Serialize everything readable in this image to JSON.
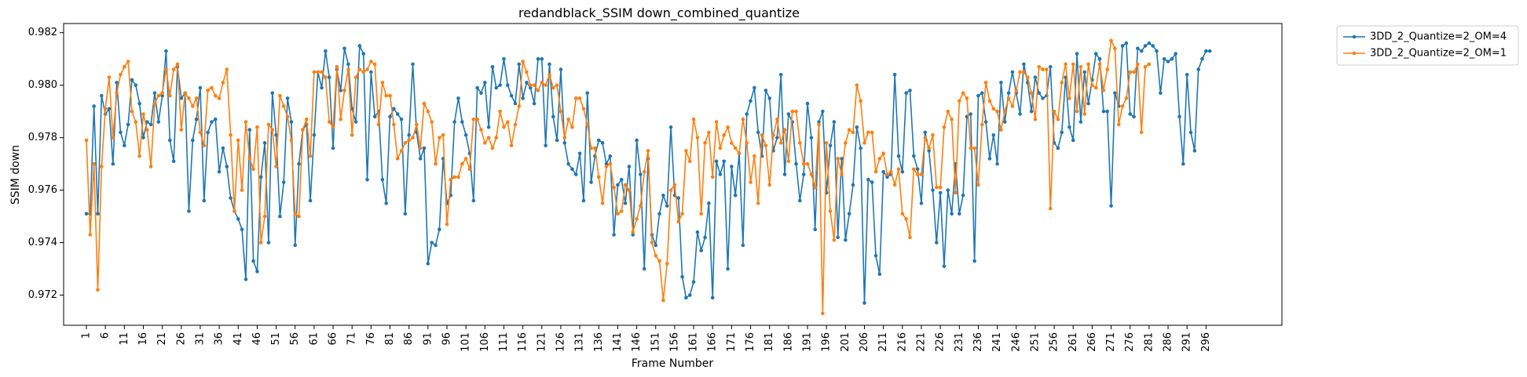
{
  "chart_data": {
    "type": "line",
    "title": "redandblack_SSIM down_combined_quantize",
    "xlabel": "Frame Number",
    "ylabel": "SSIM down",
    "xlim": [
      -5,
      316
    ],
    "ylim": [
      0.97085,
      0.98235
    ],
    "x_ticks": [
      1,
      6,
      11,
      16,
      21,
      26,
      31,
      36,
      41,
      46,
      51,
      56,
      61,
      66,
      71,
      76,
      81,
      86,
      91,
      96,
      101,
      106,
      111,
      116,
      121,
      126,
      131,
      136,
      141,
      146,
      151,
      156,
      161,
      166,
      171,
      176,
      181,
      186,
      191,
      196,
      201,
      206,
      211,
      216,
      221,
      226,
      231,
      236,
      241,
      246,
      251,
      256,
      261,
      266,
      271,
      276,
      281,
      286,
      291,
      296
    ],
    "y_ticks": [
      0.972,
      0.974,
      0.976,
      0.978,
      0.98,
      0.982
    ],
    "y_tick_labels": [
      "0.972",
      "0.974",
      "0.976",
      "0.978",
      "0.980",
      "0.982"
    ],
    "grid": false,
    "legend_position": "outside-top-right",
    "x_start": 1,
    "series": [
      {
        "name": "3DD_2_Quantize=2_OM=4",
        "color": "#1f77b4",
        "marker": "circle",
        "values": [
          0.9751,
          0.9751,
          0.9792,
          0.9751,
          0.9796,
          0.9789,
          0.9791,
          0.977,
          0.9801,
          0.9782,
          0.9777,
          0.9785,
          0.9802,
          0.98,
          0.9793,
          0.978,
          0.9786,
          0.9785,
          0.9797,
          0.9786,
          0.9796,
          0.9813,
          0.9779,
          0.9771,
          0.9807,
          0.9795,
          0.9797,
          0.9752,
          0.9779,
          0.9787,
          0.9799,
          0.9756,
          0.9782,
          0.9786,
          0.9787,
          0.9767,
          0.9776,
          0.9769,
          0.9757,
          0.9752,
          0.9749,
          0.9745,
          0.9726,
          0.9783,
          0.9733,
          0.9729,
          0.9765,
          0.9778,
          0.974,
          0.9797,
          0.9781,
          0.975,
          0.9763,
          0.9795,
          0.9786,
          0.9739,
          0.977,
          0.9783,
          0.9785,
          0.9756,
          0.9781,
          0.9805,
          0.9799,
          0.9813,
          0.9803,
          0.9776,
          0.9806,
          0.9798,
          0.9814,
          0.9808,
          0.9791,
          0.9786,
          0.9815,
          0.9812,
          0.9764,
          0.9805,
          0.9788,
          0.979,
          0.9764,
          0.9755,
          0.9788,
          0.9791,
          0.9789,
          0.9787,
          0.9751,
          0.9781,
          0.9808,
          0.9782,
          0.9772,
          0.9776,
          0.9732,
          0.974,
          0.9739,
          0.9745,
          0.9772,
          0.9755,
          0.9758,
          0.9786,
          0.9795,
          0.9786,
          0.9781,
          0.9774,
          0.9756,
          0.9799,
          0.9797,
          0.9801,
          0.9784,
          0.9807,
          0.9799,
          0.98,
          0.981,
          0.98,
          0.9796,
          0.9793,
          0.9808,
          0.9795,
          0.9801,
          0.9799,
          0.9793,
          0.981,
          0.981,
          0.9777,
          0.9808,
          0.9788,
          0.9779,
          0.9806,
          0.9778,
          0.977,
          0.9768,
          0.9766,
          0.9774,
          0.9756,
          0.9797,
          0.9763,
          0.9773,
          0.9779,
          0.9778,
          0.977,
          0.9773,
          0.9743,
          0.9762,
          0.9764,
          0.9755,
          0.9769,
          0.9743,
          0.9779,
          0.9766,
          0.973,
          0.9772,
          0.9743,
          0.9739,
          0.9751,
          0.9758,
          0.9754,
          0.9784,
          0.9758,
          0.9757,
          0.9727,
          0.9719,
          0.972,
          0.9725,
          0.9744,
          0.9737,
          0.9742,
          0.9755,
          0.9719,
          0.9771,
          0.9766,
          0.9771,
          0.973,
          0.9769,
          0.9758,
          0.9774,
          0.9739,
          0.9789,
          0.9794,
          0.9799,
          0.9782,
          0.9773,
          0.9798,
          0.9795,
          0.9775,
          0.978,
          0.9804,
          0.9766,
          0.9789,
          0.9786,
          0.977,
          0.9756,
          0.9766,
          0.9793,
          0.978,
          0.9745,
          0.9786,
          0.979,
          0.9759,
          0.9777,
          0.9786,
          0.9742,
          0.9772,
          0.9741,
          0.9751,
          0.9762,
          0.9784,
          0.9776,
          0.9717,
          0.9764,
          0.9763,
          0.9735,
          0.9728,
          0.9767,
          0.9765,
          0.9766,
          0.9804,
          0.9773,
          0.9767,
          0.9797,
          0.9798,
          0.9773,
          0.9768,
          0.9755,
          0.9782,
          0.9775,
          0.976,
          0.974,
          0.9759,
          0.9731,
          0.976,
          0.9751,
          0.977,
          0.9751,
          0.9758,
          0.9788,
          0.9789,
          0.9733,
          0.9796,
          0.9797,
          0.9786,
          0.9772,
          0.9781,
          0.977,
          0.9801,
          0.9786,
          0.9797,
          0.9805,
          0.9797,
          0.9789,
          0.9808,
          0.9801,
          0.979,
          0.9803,
          0.9797,
          0.9795,
          0.9796,
          0.9807,
          0.9778,
          0.9776,
          0.9782,
          0.9803,
          0.9784,
          0.9779,
          0.9812,
          0.9786,
          0.9805,
          0.9793,
          0.9802,
          0.9812,
          0.981,
          0.979,
          0.979,
          0.9754,
          0.9797,
          0.9792,
          0.9815,
          0.9816,
          0.9789,
          0.9788,
          0.9814,
          0.9813,
          0.9815,
          0.9816,
          0.9815,
          0.9813,
          0.9797,
          0.981,
          0.9809,
          0.981,
          0.9812,
          0.9788,
          0.977,
          0.9804,
          0.9782,
          0.9775,
          0.9806,
          0.981,
          0.9813,
          0.9813
        ]
      },
      {
        "name": "3DD_2_Quantize=2_OM=1",
        "color": "#ff7f0e",
        "marker": "circle",
        "values": [
          0.9779,
          0.9743,
          0.977,
          0.9722,
          0.9769,
          0.9791,
          0.9803,
          0.978,
          0.9797,
          0.9804,
          0.9807,
          0.9809,
          0.979,
          0.9786,
          0.9773,
          0.9789,
          0.9783,
          0.9769,
          0.9793,
          0.9796,
          0.9797,
          0.9806,
          0.9796,
          0.9806,
          0.9808,
          0.9783,
          0.9797,
          0.9795,
          0.9792,
          0.9795,
          0.9782,
          0.9777,
          0.9798,
          0.9799,
          0.9796,
          0.9795,
          0.9801,
          0.9806,
          0.9781,
          0.9752,
          0.9779,
          0.976,
          0.9786,
          0.9772,
          0.9768,
          0.9784,
          0.974,
          0.975,
          0.9785,
          0.9783,
          0.9769,
          0.9796,
          0.9792,
          0.9788,
          0.9779,
          0.9751,
          0.975,
          0.9783,
          0.9787,
          0.9773,
          0.9805,
          0.9805,
          0.9805,
          0.9803,
          0.9786,
          0.9784,
          0.9807,
          0.9787,
          0.9798,
          0.9806,
          0.9781,
          0.9803,
          0.9806,
          0.9805,
          0.9806,
          0.9809,
          0.9808,
          0.9785,
          0.9801,
          0.9796,
          0.9796,
          0.9785,
          0.9772,
          0.9775,
          0.9778,
          0.9779,
          0.978,
          0.9785,
          0.9776,
          0.9793,
          0.979,
          0.9786,
          0.977,
          0.978,
          0.9781,
          0.9747,
          0.9764,
          0.9765,
          0.9765,
          0.977,
          0.9772,
          0.9768,
          0.9787,
          0.9787,
          0.9783,
          0.9778,
          0.978,
          0.9776,
          0.978,
          0.979,
          0.9784,
          0.9786,
          0.9777,
          0.9785,
          0.9792,
          0.9809,
          0.9805,
          0.98,
          0.98,
          0.9798,
          0.9801,
          0.98,
          0.9804,
          0.9799,
          0.98,
          0.979,
          0.978,
          0.9787,
          0.9784,
          0.9795,
          0.9795,
          0.9791,
          0.9785,
          0.9776,
          0.9776,
          0.9765,
          0.9755,
          0.9769,
          0.977,
          0.9761,
          0.9751,
          0.9752,
          0.9762,
          0.976,
          0.9744,
          0.9749,
          0.9754,
          0.9767,
          0.9775,
          0.974,
          0.9735,
          0.9733,
          0.9718,
          0.9732,
          0.976,
          0.9762,
          0.9748,
          0.9751,
          0.9775,
          0.9771,
          0.9787,
          0.978,
          0.9751,
          0.9778,
          0.9782,
          0.9765,
          0.9786,
          0.9776,
          0.9781,
          0.9784,
          0.9778,
          0.9776,
          0.9774,
          0.9787,
          0.9778,
          0.9763,
          0.9773,
          0.9755,
          0.9781,
          0.9777,
          0.9762,
          0.9781,
          0.9787,
          0.9778,
          0.9783,
          0.9771,
          0.979,
          0.979,
          0.9778,
          0.977,
          0.977,
          0.9766,
          0.9761,
          0.9785,
          0.9713,
          0.9778,
          0.9752,
          0.9741,
          0.9772,
          0.9766,
          0.9778,
          0.9783,
          0.9782,
          0.98,
          0.9794,
          0.9778,
          0.9782,
          0.9782,
          0.9767,
          0.9772,
          0.9774,
          0.9766,
          0.9767,
          0.9762,
          0.9768,
          0.9751,
          0.9749,
          0.9742,
          0.9768,
          0.9766,
          0.9766,
          0.978,
          0.9776,
          0.9781,
          0.9761,
          0.9761,
          0.9784,
          0.979,
          0.9787,
          0.9759,
          0.9794,
          0.9797,
          0.9795,
          0.9776,
          0.9776,
          0.9762,
          0.9785,
          0.9801,
          0.9794,
          0.9791,
          0.979,
          0.9783,
          0.979,
          0.9795,
          0.9792,
          0.9798,
          0.9805,
          0.9805,
          0.9803,
          0.9797,
          0.9787,
          0.9807,
          0.9806,
          0.9806,
          0.9753,
          0.979,
          0.9787,
          0.9801,
          0.9808,
          0.9795,
          0.9808,
          0.979,
          0.9807,
          0.9789,
          0.9808,
          0.98,
          0.9799,
          0.9808,
          0.9798,
          0.9806,
          0.9817,
          0.9814,
          0.9785,
          0.9792,
          0.9795,
          0.9805,
          0.9805,
          0.9808,
          0.9782,
          0.9807,
          0.9808
        ]
      }
    ]
  }
}
